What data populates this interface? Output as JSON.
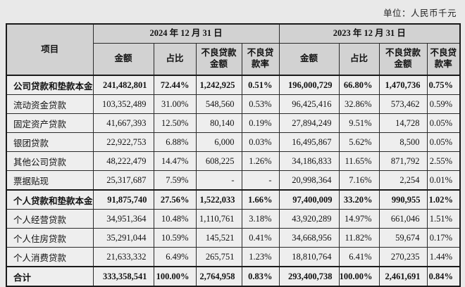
{
  "unit_label": "单位：人民币千元",
  "table": {
    "item_header": "项目",
    "period_headers": [
      "2024 年 12 月 31 日",
      "2023 年 12 月 31 日"
    ],
    "sub_headers": [
      "金额",
      "占比",
      "不良贷款\n金额",
      "不良贷\n款率"
    ],
    "rows": [
      {
        "item": "公司贷款和垫款本金",
        "bold": true,
        "y2024": [
          "241,482,801",
          "72.44%",
          "1,242,925",
          "0.51%"
        ],
        "y2023": [
          "196,000,729",
          "66.80%",
          "1,470,736",
          "0.75%"
        ]
      },
      {
        "item": "流动资金贷款",
        "bold": false,
        "y2024": [
          "103,352,489",
          "31.00%",
          "548,560",
          "0.53%"
        ],
        "y2023": [
          "96,425,416",
          "32.86%",
          "573,462",
          "0.59%"
        ]
      },
      {
        "item": "固定资产贷款",
        "bold": false,
        "y2024": [
          "41,667,393",
          "12.50%",
          "80,140",
          "0.19%"
        ],
        "y2023": [
          "27,894,249",
          "9.51%",
          "14,728",
          "0.05%"
        ]
      },
      {
        "item": "银团贷款",
        "bold": false,
        "y2024": [
          "22,922,753",
          "6.88%",
          "6,000",
          "0.03%"
        ],
        "y2023": [
          "16,495,867",
          "5.62%",
          "8,500",
          "0.05%"
        ]
      },
      {
        "item": "其他公司贷款",
        "bold": false,
        "y2024": [
          "48,222,479",
          "14.47%",
          "608,225",
          "1.26%"
        ],
        "y2023": [
          "34,186,833",
          "11.65%",
          "871,792",
          "2.55%"
        ]
      },
      {
        "item": "票据贴现",
        "bold": false,
        "y2024": [
          "25,317,687",
          "7.59%",
          "-",
          "-"
        ],
        "y2023": [
          "20,998,364",
          "7.16%",
          "2,254",
          "0.01%"
        ]
      },
      {
        "item": "个人贷款和垫款本金",
        "bold": true,
        "y2024": [
          "91,875,740",
          "27.56%",
          "1,522,033",
          "1.66%"
        ],
        "y2023": [
          "97,400,009",
          "33.20%",
          "990,955",
          "1.02%"
        ]
      },
      {
        "item": "个人经营贷款",
        "bold": false,
        "y2024": [
          "34,951,364",
          "10.48%",
          "1,110,761",
          "3.18%"
        ],
        "y2023": [
          "43,920,289",
          "14.97%",
          "661,046",
          "1.51%"
        ]
      },
      {
        "item": "个人住房贷款",
        "bold": false,
        "y2024": [
          "35,291,044",
          "10.59%",
          "145,521",
          "0.41%"
        ],
        "y2023": [
          "34,668,956",
          "11.82%",
          "59,674",
          "0.17%"
        ]
      },
      {
        "item": "个人消费贷款",
        "bold": false,
        "y2024": [
          "21,633,332",
          "6.49%",
          "265,751",
          "1.23%"
        ],
        "y2023": [
          "18,810,764",
          "6.41%",
          "270,235",
          "1.44%"
        ]
      },
      {
        "item": "合计",
        "bold": true,
        "y2024": [
          "333,358,541",
          "100.00%",
          "2,764,958",
          "0.83%"
        ],
        "y2023": [
          "293,400,738",
          "100.00%",
          "2,461,691",
          "0.84%"
        ]
      }
    ],
    "colors": {
      "header_bg": "#d2d2d2",
      "cell_bg": "#eeeeee",
      "page_bg": "#e9e9e9",
      "border": "#1a1a1a"
    }
  }
}
